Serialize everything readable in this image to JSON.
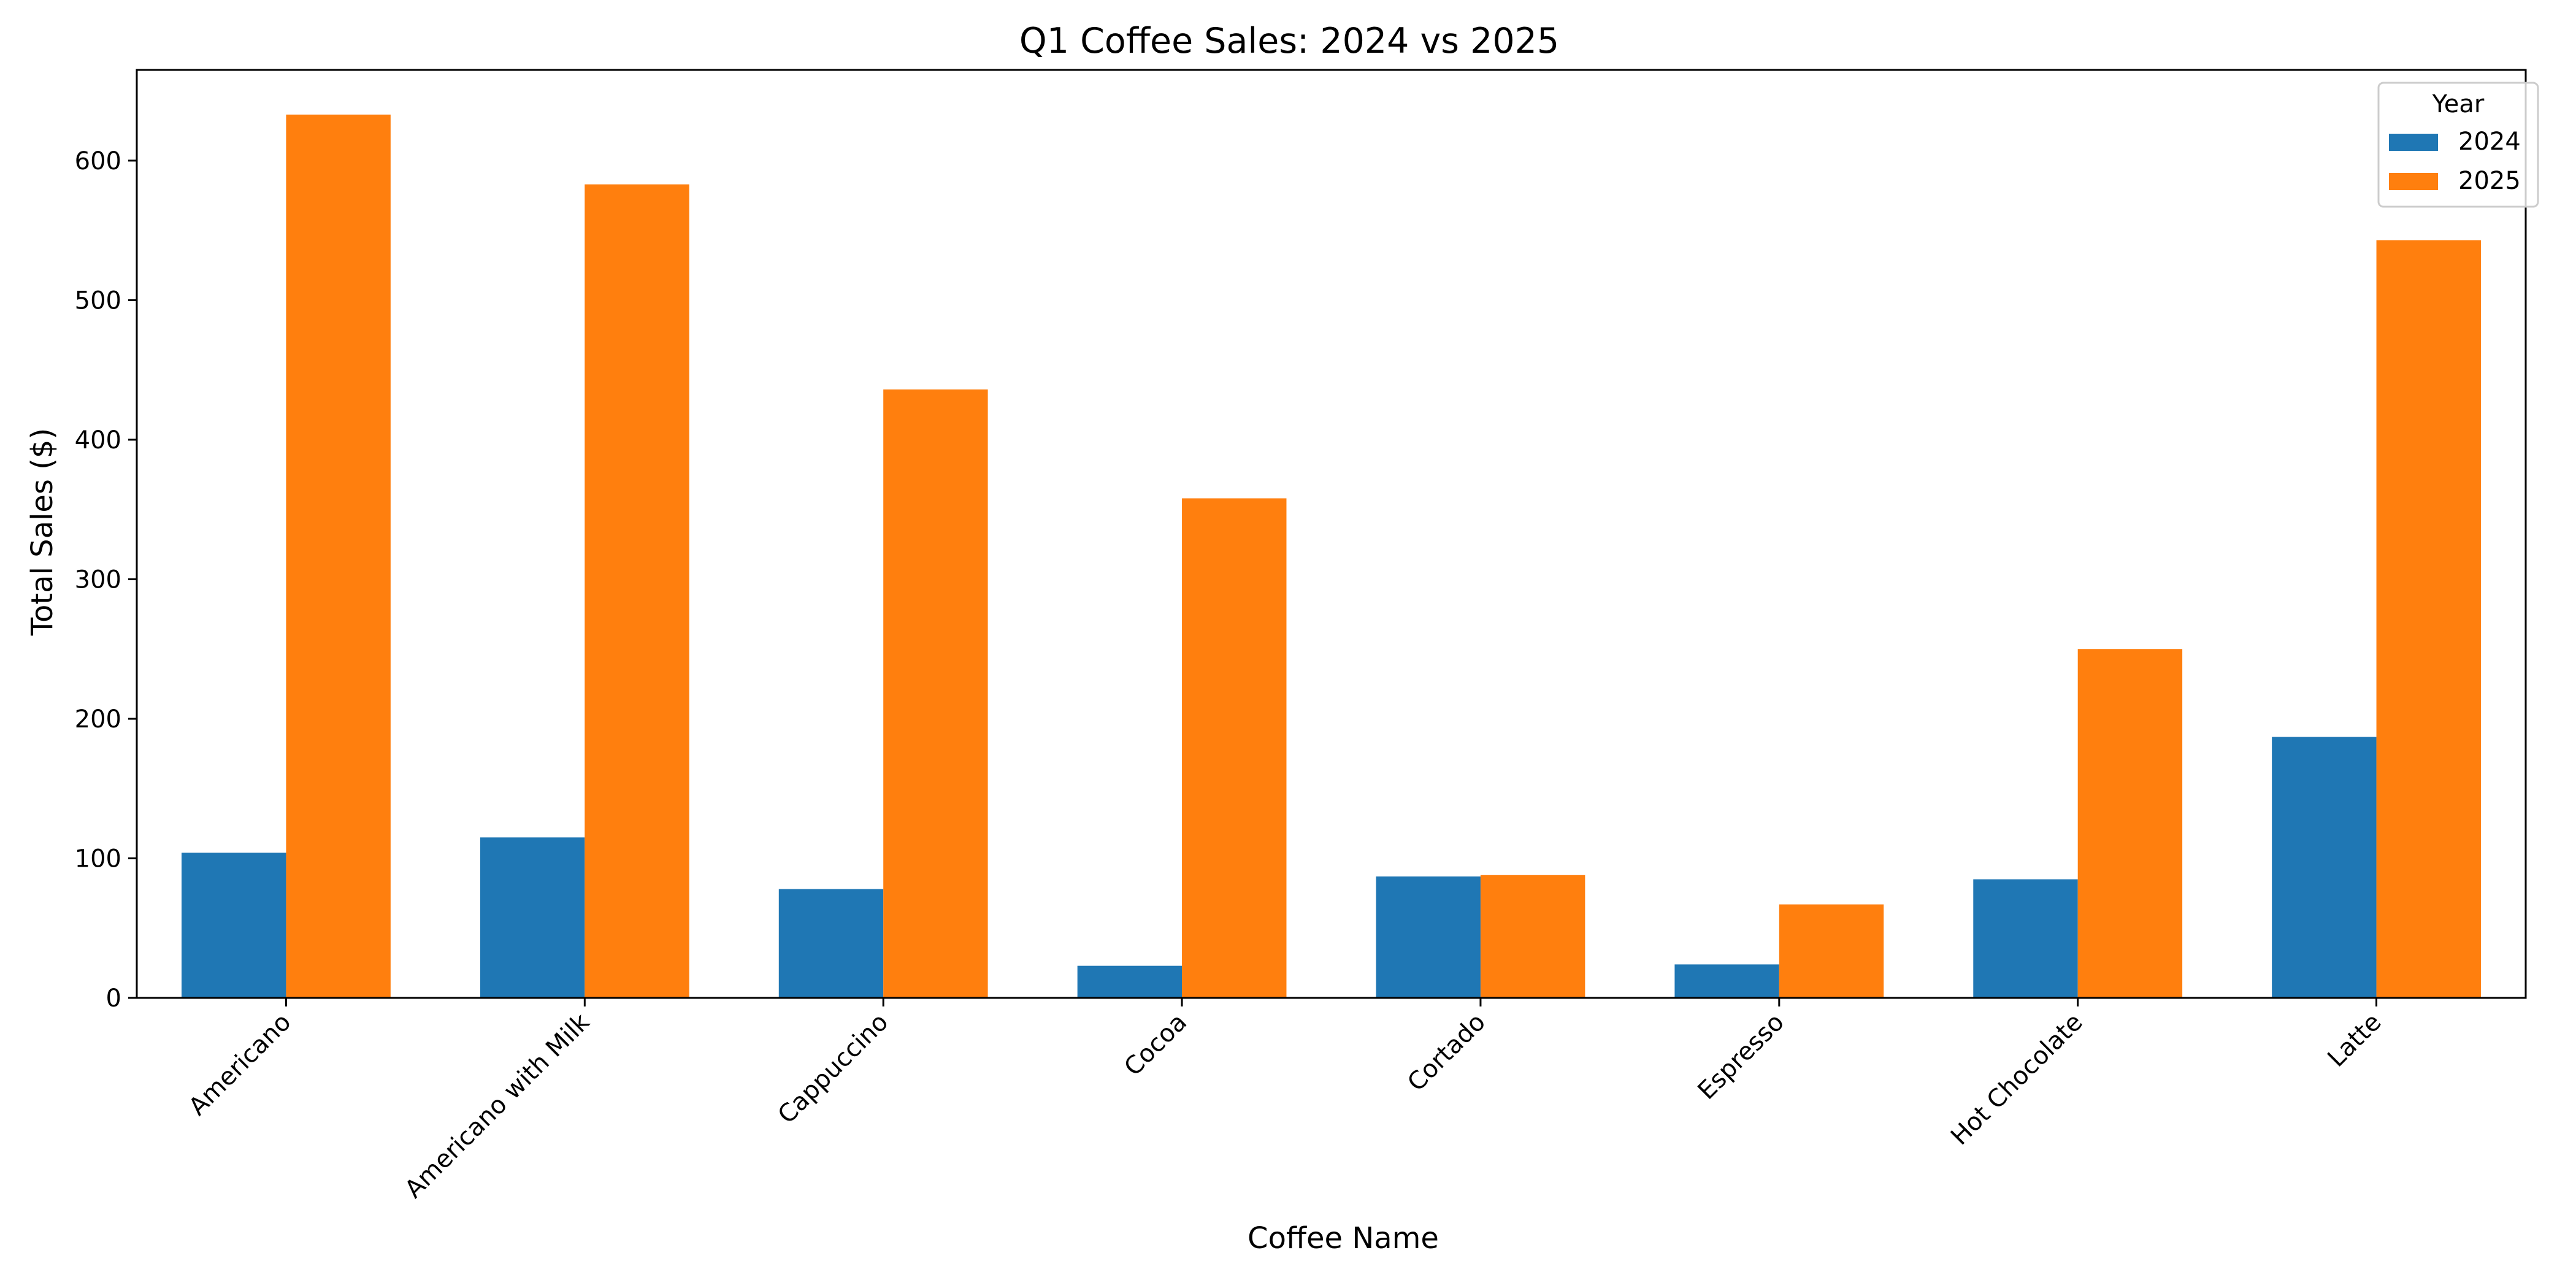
{
  "chart_data": {
    "type": "bar",
    "title": "Q1 Coffee Sales: 2024 vs 2025",
    "xlabel": "Coffee Name",
    "ylabel": "Total Sales ($)",
    "categories": [
      "Americano",
      "Americano with Milk",
      "Cappuccino",
      "Cocoa",
      "Cortado",
      "Espresso",
      "Hot Chocolate",
      "Latte"
    ],
    "series": [
      {
        "name": "2024",
        "color": "#1f77b4",
        "values": [
          104,
          115,
          78,
          23,
          87,
          24,
          85,
          187
        ]
      },
      {
        "name": "2025",
        "color": "#ff7f0e",
        "values": [
          633,
          583,
          436,
          358,
          88,
          67,
          250,
          543
        ]
      }
    ],
    "ylim": [
      0,
      665
    ],
    "yticks": [
      0,
      100,
      200,
      300,
      400,
      500,
      600
    ],
    "grid": false,
    "legend": {
      "title": "Year",
      "position": "top-right"
    }
  }
}
